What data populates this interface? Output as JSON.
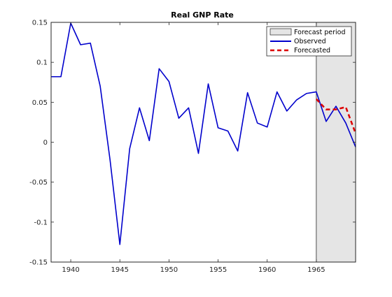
{
  "chart_data": {
    "type": "line",
    "title": "Real GNP Rate",
    "xlabel": "",
    "ylabel": "",
    "xlim": [
      1938,
      1969
    ],
    "ylim": [
      -0.15,
      0.15
    ],
    "x_ticks": [
      1940,
      1945,
      1950,
      1955,
      1960,
      1965
    ],
    "x_tick_labels": [
      "1940",
      "1945",
      "1950",
      "1955",
      "1960",
      "1965"
    ],
    "y_ticks": [
      -0.15,
      -0.1,
      -0.05,
      0,
      0.05,
      0.1,
      0.15
    ],
    "y_tick_labels": [
      "-0.15",
      "-0.1",
      "-0.05",
      "0",
      "0.05",
      "0.1",
      "0.15"
    ],
    "grid": false,
    "legend_position": "top-right",
    "forecast_region": {
      "name": "Forecast period",
      "x_start": 1965,
      "x_end": 1969,
      "color": "#e5e5e5"
    },
    "series": [
      {
        "name": "Observed",
        "color": "#0000cc",
        "style": "solid",
        "x": [
          1938,
          1939,
          1940,
          1941,
          1942,
          1943,
          1944,
          1945,
          1946,
          1947,
          1948,
          1949,
          1950,
          1951,
          1952,
          1953,
          1954,
          1955,
          1956,
          1957,
          1958,
          1959,
          1960,
          1961,
          1962,
          1963,
          1964,
          1965,
          1966,
          1967,
          1968,
          1969
        ],
        "values": [
          0.082,
          0.082,
          0.149,
          0.122,
          0.124,
          0.07,
          -0.022,
          -0.128,
          -0.008,
          0.043,
          0.002,
          0.092,
          0.076,
          0.03,
          0.043,
          -0.014,
          0.073,
          0.018,
          0.014,
          -0.011,
          0.062,
          0.024,
          0.019,
          0.063,
          0.039,
          0.053,
          0.061,
          0.063,
          0.026,
          0.045,
          0.024,
          -0.006
        ]
      },
      {
        "name": "Forecasted",
        "color": "#dd0000",
        "style": "dashed",
        "x": [
          1965,
          1966,
          1967,
          1968,
          1969
        ],
        "values": [
          0.054,
          0.041,
          0.041,
          0.044,
          0.011
        ]
      }
    ]
  }
}
